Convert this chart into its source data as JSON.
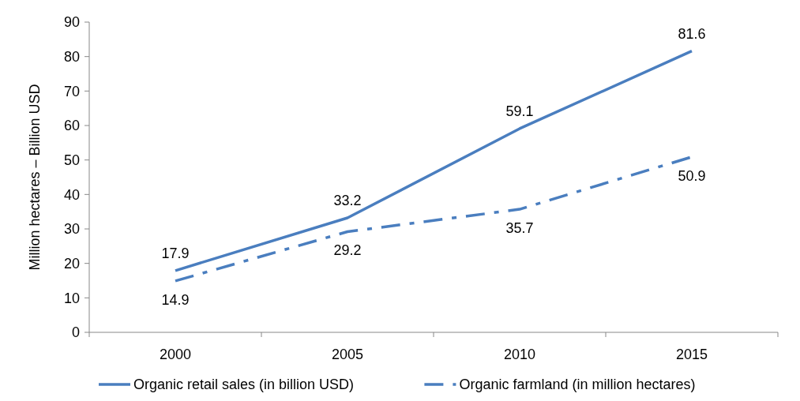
{
  "chart_data": {
    "type": "line",
    "ylabel": "Million hectares – Billion USD",
    "categories": [
      "2000",
      "2005",
      "2010",
      "2015"
    ],
    "series": [
      {
        "name": "Organic retail sales (in billion USD)",
        "color": "#4a7ebf",
        "values": [
          17.9,
          33.2,
          59.1,
          81.6
        ],
        "line_style": "solid"
      },
      {
        "name": "Organic farmland (in million hectares)",
        "color": "#4a7ebf",
        "values": [
          14.9,
          29.2,
          35.7,
          50.9
        ],
        "line_style": "dashed"
      }
    ],
    "ylim": [
      0,
      90
    ],
    "yticks": [
      0,
      10,
      20,
      30,
      40,
      50,
      60,
      70,
      80,
      90
    ],
    "data_labels": true,
    "legend": "bottom",
    "grid": false,
    "marker": "none"
  }
}
